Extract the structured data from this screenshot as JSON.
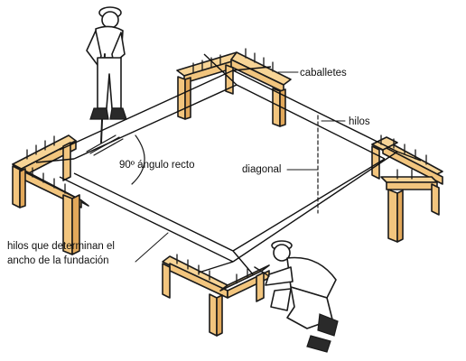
{
  "labels": {
    "caballetes": "caballetes",
    "hilos": "hilos",
    "angulo": "90º ángulo recto",
    "diagonal": "diagonal",
    "hilos_ancho_line1": "hilos que determinan el",
    "hilos_ancho_line2": "ancho de la fundación"
  },
  "colors": {
    "wood": "#f2c57e",
    "ink": "#1a1a1a"
  },
  "icons": [
    "worker-standing-figure",
    "worker-kneeling-figure"
  ]
}
